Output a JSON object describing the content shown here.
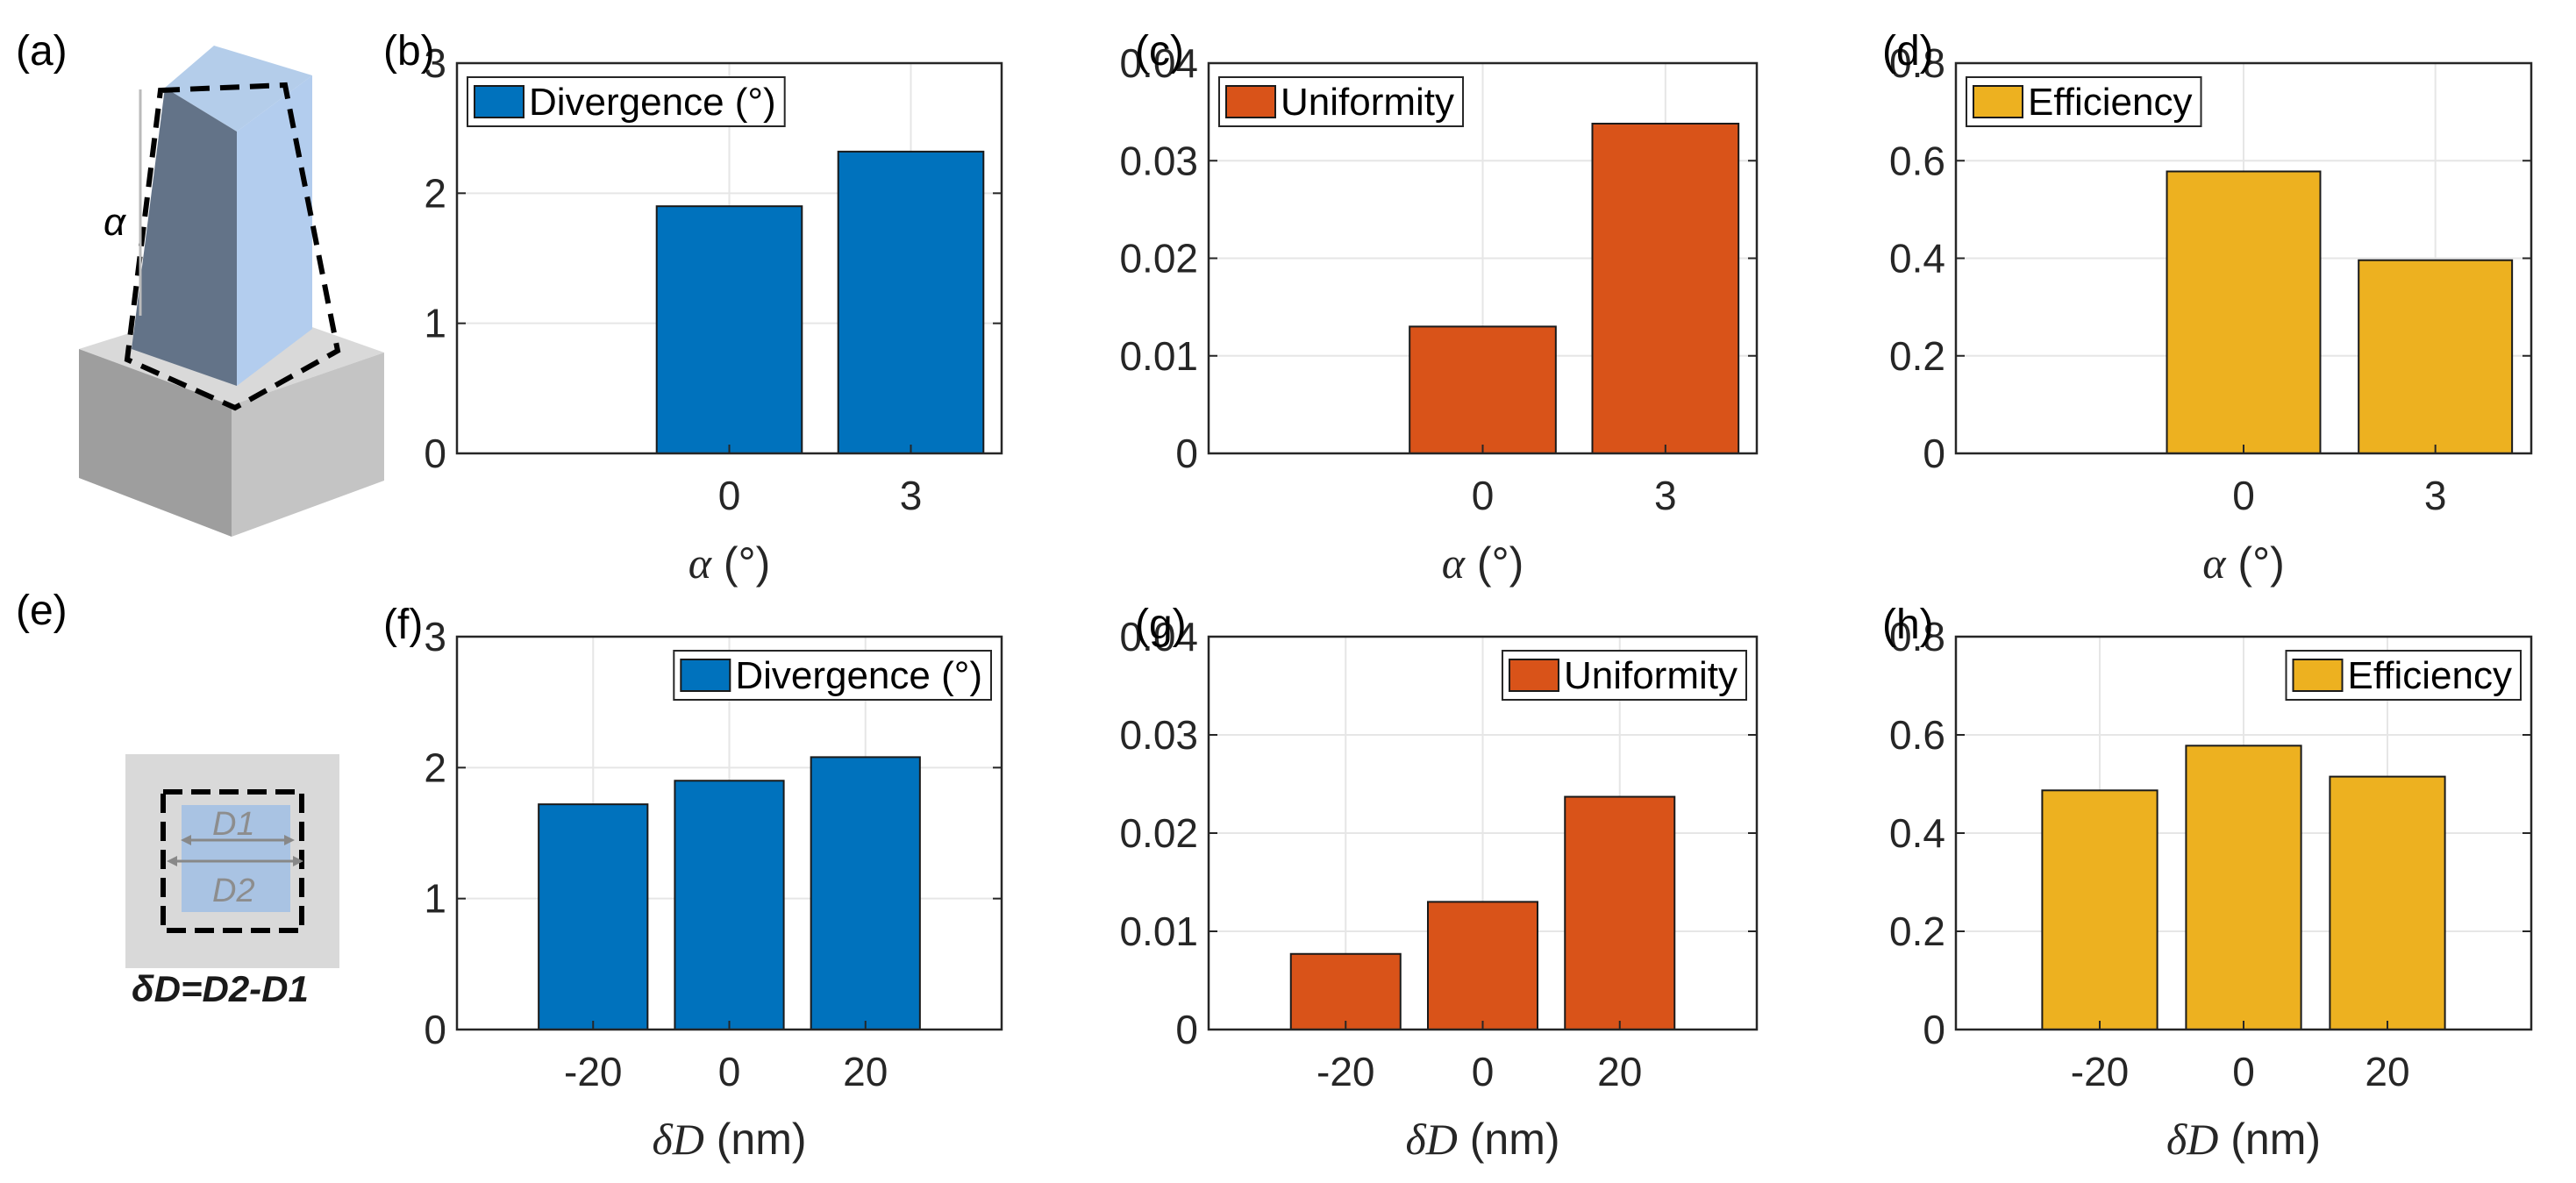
{
  "panel_labels": {
    "a": "(a)",
    "e": "(e)"
  },
  "illustration": {
    "alpha_label": "α",
    "d1_label": "D1",
    "d2_label": "D2",
    "delta_d_formula": "δD=D2-D1"
  },
  "colors": {
    "divergence": "#0072BD",
    "uniformity": "#D95319",
    "efficiency": "#EDB120"
  },
  "chart_data": [
    {
      "id": "b",
      "panel_label": "(b)",
      "type": "bar",
      "categories": [
        "0",
        "3"
      ],
      "series": [
        {
          "name": "Divergence (°)",
          "values": [
            1.9,
            2.32
          ]
        }
      ],
      "ylim": [
        0,
        3
      ],
      "yticks": [
        "0",
        "1",
        "2",
        "3"
      ],
      "xlabel_sym": "α",
      "xlabel_unit": " (°)",
      "legend": "top-left",
      "color": "#0072BD",
      "grid": true
    },
    {
      "id": "c",
      "panel_label": "(c)",
      "type": "bar",
      "categories": [
        "0",
        "3"
      ],
      "series": [
        {
          "name": "Uniformity",
          "values": [
            0.013,
            0.0338
          ]
        }
      ],
      "ylim": [
        0,
        0.04
      ],
      "yticks": [
        "0",
        "0.01",
        "0.02",
        "0.03",
        "0.04"
      ],
      "xlabel_sym": "α",
      "xlabel_unit": " (°)",
      "legend": "top-left",
      "color": "#D95319",
      "grid": true
    },
    {
      "id": "d",
      "panel_label": "(d)",
      "type": "bar",
      "categories": [
        "0",
        "3"
      ],
      "series": [
        {
          "name": "Efficiency",
          "values": [
            0.578,
            0.396
          ]
        }
      ],
      "ylim": [
        0,
        0.8
      ],
      "yticks": [
        "0",
        "0.2",
        "0.4",
        "0.6",
        "0.8"
      ],
      "xlabel_sym": "α",
      "xlabel_unit": " (°)",
      "legend": "top-left",
      "color": "#EDB120",
      "grid": true
    },
    {
      "id": "f",
      "panel_label": "(f)",
      "type": "bar",
      "categories": [
        "-20",
        "0",
        "20"
      ],
      "series": [
        {
          "name": "Divergence (°)",
          "values": [
            1.72,
            1.9,
            2.08
          ]
        }
      ],
      "ylim": [
        0,
        3
      ],
      "yticks": [
        "0",
        "1",
        "2",
        "3"
      ],
      "xlabel_sym": "δD",
      "xlabel_unit": " (nm)",
      "legend": "top-right",
      "color": "#0072BD",
      "grid": true
    },
    {
      "id": "g",
      "panel_label": "(g)",
      "type": "bar",
      "categories": [
        "-20",
        "0",
        "20"
      ],
      "series": [
        {
          "name": "Uniformity",
          "values": [
            0.0077,
            0.013,
            0.0237
          ]
        }
      ],
      "ylim": [
        0,
        0.04
      ],
      "yticks": [
        "0",
        "0.01",
        "0.02",
        "0.03",
        "0.04"
      ],
      "xlabel_sym": "δD",
      "xlabel_unit": " (nm)",
      "legend": "top-right",
      "color": "#D95319",
      "grid": true
    },
    {
      "id": "h",
      "panel_label": "(h)",
      "type": "bar",
      "categories": [
        "-20",
        "0",
        "20"
      ],
      "series": [
        {
          "name": "Efficiency",
          "values": [
            0.487,
            0.578,
            0.515
          ]
        }
      ],
      "ylim": [
        0,
        0.8
      ],
      "yticks": [
        "0",
        "0.2",
        "0.4",
        "0.6",
        "0.8"
      ],
      "xlabel_sym": "δD",
      "xlabel_unit": " (nm)",
      "legend": "top-right",
      "color": "#EDB120",
      "grid": true
    }
  ]
}
